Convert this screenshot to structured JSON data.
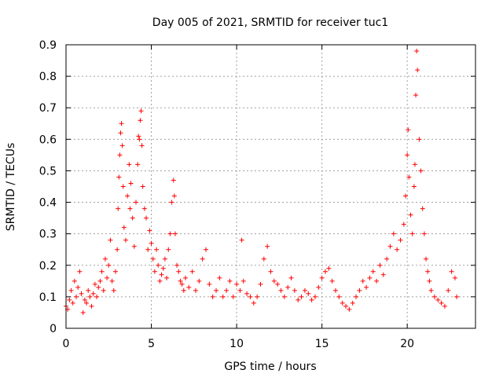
{
  "chart_data": {
    "type": "scatter",
    "title": "Day 005 of 2021, SRMTID for receiver tuc1",
    "xlabel": "GPS time / hours",
    "ylabel": "SRMTID / TECUs",
    "xlim": [
      0,
      24
    ],
    "ylim": [
      0,
      0.9
    ],
    "xticks": [
      0,
      5,
      10,
      15,
      20
    ],
    "xtick_labels": [
      "0",
      "5",
      "10",
      "15",
      "20"
    ],
    "yticks": [
      0,
      0.1,
      0.2,
      0.3,
      0.4,
      0.5,
      0.6,
      0.7,
      0.8,
      0.9
    ],
    "ytick_labels": [
      "0",
      "0.1",
      "0.2",
      "0.3",
      "0.4",
      "0.5",
      "0.6",
      "0.7",
      "0.8",
      "0.9"
    ],
    "grid": true,
    "marker": "+",
    "color": "#ff0000",
    "series": [
      {
        "name": "SRMTID",
        "points": [
          [
            0.0,
            0.07
          ],
          [
            0.1,
            0.06
          ],
          [
            0.2,
            0.09
          ],
          [
            0.3,
            0.12
          ],
          [
            0.4,
            0.08
          ],
          [
            0.5,
            0.15
          ],
          [
            0.6,
            0.1
          ],
          [
            0.7,
            0.13
          ],
          [
            0.8,
            0.18
          ],
          [
            0.9,
            0.11
          ],
          [
            1.0,
            0.05
          ],
          [
            1.1,
            0.09
          ],
          [
            1.2,
            0.08
          ],
          [
            1.3,
            0.12
          ],
          [
            1.4,
            0.1
          ],
          [
            1.5,
            0.07
          ],
          [
            1.6,
            0.11
          ],
          [
            1.7,
            0.14
          ],
          [
            1.8,
            0.1
          ],
          [
            1.9,
            0.13
          ],
          [
            2.0,
            0.15
          ],
          [
            2.1,
            0.18
          ],
          [
            2.2,
            0.12
          ],
          [
            2.3,
            0.22
          ],
          [
            2.4,
            0.16
          ],
          [
            2.5,
            0.2
          ],
          [
            2.6,
            0.28
          ],
          [
            2.7,
            0.15
          ],
          [
            2.8,
            0.12
          ],
          [
            2.9,
            0.18
          ],
          [
            3.0,
            0.25
          ],
          [
            3.05,
            0.38
          ],
          [
            3.1,
            0.48
          ],
          [
            3.15,
            0.55
          ],
          [
            3.2,
            0.62
          ],
          [
            3.25,
            0.65
          ],
          [
            3.3,
            0.58
          ],
          [
            3.35,
            0.45
          ],
          [
            3.4,
            0.32
          ],
          [
            3.5,
            0.28
          ],
          [
            3.6,
            0.42
          ],
          [
            3.7,
            0.52
          ],
          [
            3.75,
            0.38
          ],
          [
            3.8,
            0.46
          ],
          [
            3.9,
            0.35
          ],
          [
            4.0,
            0.26
          ],
          [
            4.1,
            0.4
          ],
          [
            4.2,
            0.52
          ],
          [
            4.25,
            0.61
          ],
          [
            4.3,
            0.6
          ],
          [
            4.35,
            0.66
          ],
          [
            4.4,
            0.69
          ],
          [
            4.45,
            0.58
          ],
          [
            4.5,
            0.45
          ],
          [
            4.6,
            0.38
          ],
          [
            4.7,
            0.35
          ],
          [
            4.8,
            0.25
          ],
          [
            4.9,
            0.31
          ],
          [
            5.0,
            0.27
          ],
          [
            5.1,
            0.22
          ],
          [
            5.2,
            0.18
          ],
          [
            5.3,
            0.25
          ],
          [
            5.4,
            0.2
          ],
          [
            5.5,
            0.15
          ],
          [
            5.6,
            0.17
          ],
          [
            5.7,
            0.19
          ],
          [
            5.8,
            0.22
          ],
          [
            5.9,
            0.16
          ],
          [
            6.0,
            0.25
          ],
          [
            6.1,
            0.3
          ],
          [
            6.2,
            0.4
          ],
          [
            6.3,
            0.47
          ],
          [
            6.35,
            0.42
          ],
          [
            6.4,
            0.3
          ],
          [
            6.5,
            0.2
          ],
          [
            6.6,
            0.18
          ],
          [
            6.7,
            0.15
          ],
          [
            6.8,
            0.14
          ],
          [
            6.9,
            0.12
          ],
          [
            7.0,
            0.16
          ],
          [
            7.2,
            0.13
          ],
          [
            7.4,
            0.18
          ],
          [
            7.6,
            0.12
          ],
          [
            7.8,
            0.15
          ],
          [
            8.0,
            0.22
          ],
          [
            8.2,
            0.25
          ],
          [
            8.4,
            0.14
          ],
          [
            8.6,
            0.1
          ],
          [
            8.8,
            0.12
          ],
          [
            9.0,
            0.16
          ],
          [
            9.2,
            0.1
          ],
          [
            9.4,
            0.12
          ],
          [
            9.6,
            0.15
          ],
          [
            9.8,
            0.1
          ],
          [
            10.0,
            0.14
          ],
          [
            10.2,
            0.12
          ],
          [
            10.3,
            0.28
          ],
          [
            10.4,
            0.15
          ],
          [
            10.6,
            0.11
          ],
          [
            10.8,
            0.1
          ],
          [
            11.0,
            0.08
          ],
          [
            11.2,
            0.1
          ],
          [
            11.4,
            0.14
          ],
          [
            11.6,
            0.22
          ],
          [
            11.8,
            0.26
          ],
          [
            12.0,
            0.18
          ],
          [
            12.2,
            0.15
          ],
          [
            12.4,
            0.14
          ],
          [
            12.6,
            0.12
          ],
          [
            12.8,
            0.1
          ],
          [
            13.0,
            0.13
          ],
          [
            13.2,
            0.16
          ],
          [
            13.4,
            0.12
          ],
          [
            13.6,
            0.09
          ],
          [
            13.8,
            0.1
          ],
          [
            14.0,
            0.12
          ],
          [
            14.2,
            0.11
          ],
          [
            14.4,
            0.09
          ],
          [
            14.6,
            0.1
          ],
          [
            14.8,
            0.13
          ],
          [
            15.0,
            0.16
          ],
          [
            15.2,
            0.18
          ],
          [
            15.4,
            0.19
          ],
          [
            15.6,
            0.15
          ],
          [
            15.8,
            0.12
          ],
          [
            16.0,
            0.1
          ],
          [
            16.2,
            0.08
          ],
          [
            16.4,
            0.07
          ],
          [
            16.6,
            0.06
          ],
          [
            16.8,
            0.08
          ],
          [
            17.0,
            0.1
          ],
          [
            17.2,
            0.12
          ],
          [
            17.4,
            0.15
          ],
          [
            17.6,
            0.13
          ],
          [
            17.8,
            0.16
          ],
          [
            18.0,
            0.18
          ],
          [
            18.2,
            0.15
          ],
          [
            18.4,
            0.2
          ],
          [
            18.6,
            0.17
          ],
          [
            18.8,
            0.22
          ],
          [
            19.0,
            0.26
          ],
          [
            19.2,
            0.3
          ],
          [
            19.4,
            0.25
          ],
          [
            19.6,
            0.28
          ],
          [
            19.8,
            0.33
          ],
          [
            19.9,
            0.42
          ],
          [
            20.0,
            0.55
          ],
          [
            20.05,
            0.63
          ],
          [
            20.1,
            0.48
          ],
          [
            20.2,
            0.36
          ],
          [
            20.3,
            0.3
          ],
          [
            20.4,
            0.45
          ],
          [
            20.45,
            0.52
          ],
          [
            20.5,
            0.74
          ],
          [
            20.55,
            0.88
          ],
          [
            20.6,
            0.82
          ],
          [
            20.7,
            0.6
          ],
          [
            20.8,
            0.5
          ],
          [
            20.9,
            0.38
          ],
          [
            21.0,
            0.3
          ],
          [
            21.1,
            0.22
          ],
          [
            21.2,
            0.18
          ],
          [
            21.3,
            0.15
          ],
          [
            21.4,
            0.12
          ],
          [
            21.6,
            0.1
          ],
          [
            21.8,
            0.09
          ],
          [
            22.0,
            0.08
          ],
          [
            22.2,
            0.07
          ],
          [
            22.4,
            0.12
          ],
          [
            22.6,
            0.18
          ],
          [
            22.8,
            0.16
          ],
          [
            22.9,
            0.1
          ]
        ]
      }
    ]
  }
}
